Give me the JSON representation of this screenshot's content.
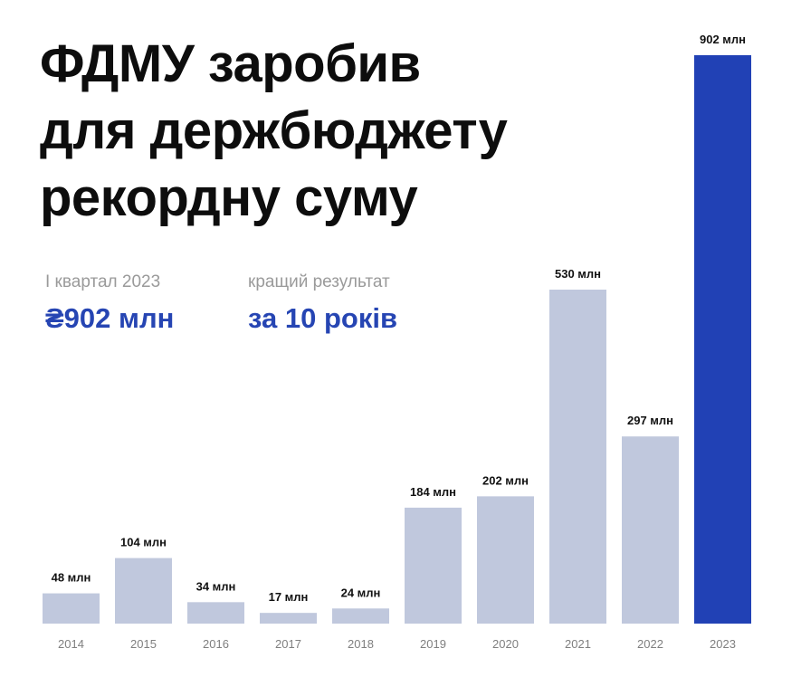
{
  "header": {
    "title_lines": [
      "ФДМУ заробив",
      "для держбюджету",
      "рекордну суму"
    ]
  },
  "stats": [
    {
      "label": "І квартал 2023",
      "value": "₴902 млн"
    },
    {
      "label": "кращий результат",
      "value": "за 10 років"
    }
  ],
  "colors": {
    "bar": "#c0c8dd",
    "highlight_bar": "#2141b5",
    "accent_text": "#2645b3"
  },
  "chart_data": {
    "type": "bar",
    "categories": [
      "2014",
      "2015",
      "2016",
      "2017",
      "2018",
      "2019",
      "2020",
      "2021",
      "2022",
      "2023"
    ],
    "values": [
      48,
      104,
      34,
      17,
      24,
      184,
      202,
      530,
      297,
      902
    ],
    "data_labels": [
      "48 млн",
      "104 млн",
      "34 млн",
      "17 млн",
      "24 млн",
      "184 млн",
      "202 млн",
      "530 млн",
      "297 млн",
      "902 млн"
    ],
    "unit": "млн",
    "highlight": "2023",
    "ylim": [
      0,
      902
    ],
    "grid": false,
    "legend": "none"
  }
}
